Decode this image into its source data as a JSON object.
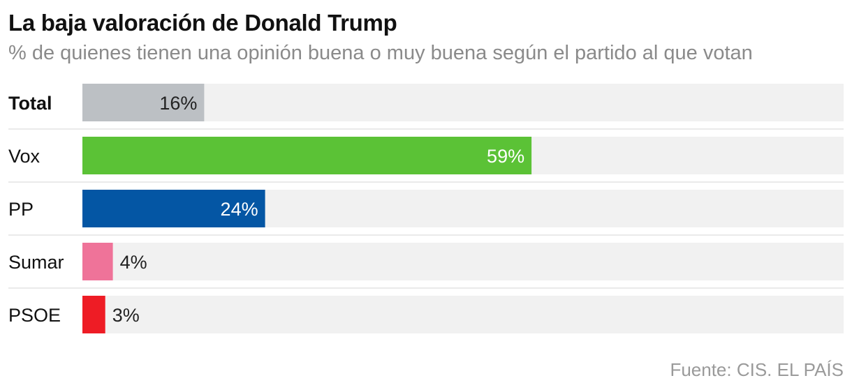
{
  "title": "La baja valoración de Donald Trump",
  "subtitle": "% de quienes tienen una opinión buena o muy buena según el partido al que votan",
  "source": "Fuente: CIS. EL PAÍS",
  "chart_data": {
    "type": "bar",
    "orientation": "horizontal",
    "categories": [
      "Total",
      "Vox",
      "PP",
      "Sumar",
      "PSOE"
    ],
    "values": [
      16,
      59,
      24,
      4,
      3
    ],
    "value_labels": [
      "16%",
      "59%",
      "24%",
      "4%",
      "3%"
    ],
    "xlim": [
      0,
      100
    ],
    "bold_categories": [
      "Total"
    ],
    "colors": [
      "#bcc0c4",
      "#5bc236",
      "#0456a4",
      "#ef7399",
      "#ee1c25"
    ],
    "label_colors": [
      "#222222",
      "#ffffff",
      "#ffffff",
      "#222222",
      "#222222"
    ],
    "track_color": "#f1f1f1",
    "grid": false,
    "legend": "none"
  }
}
